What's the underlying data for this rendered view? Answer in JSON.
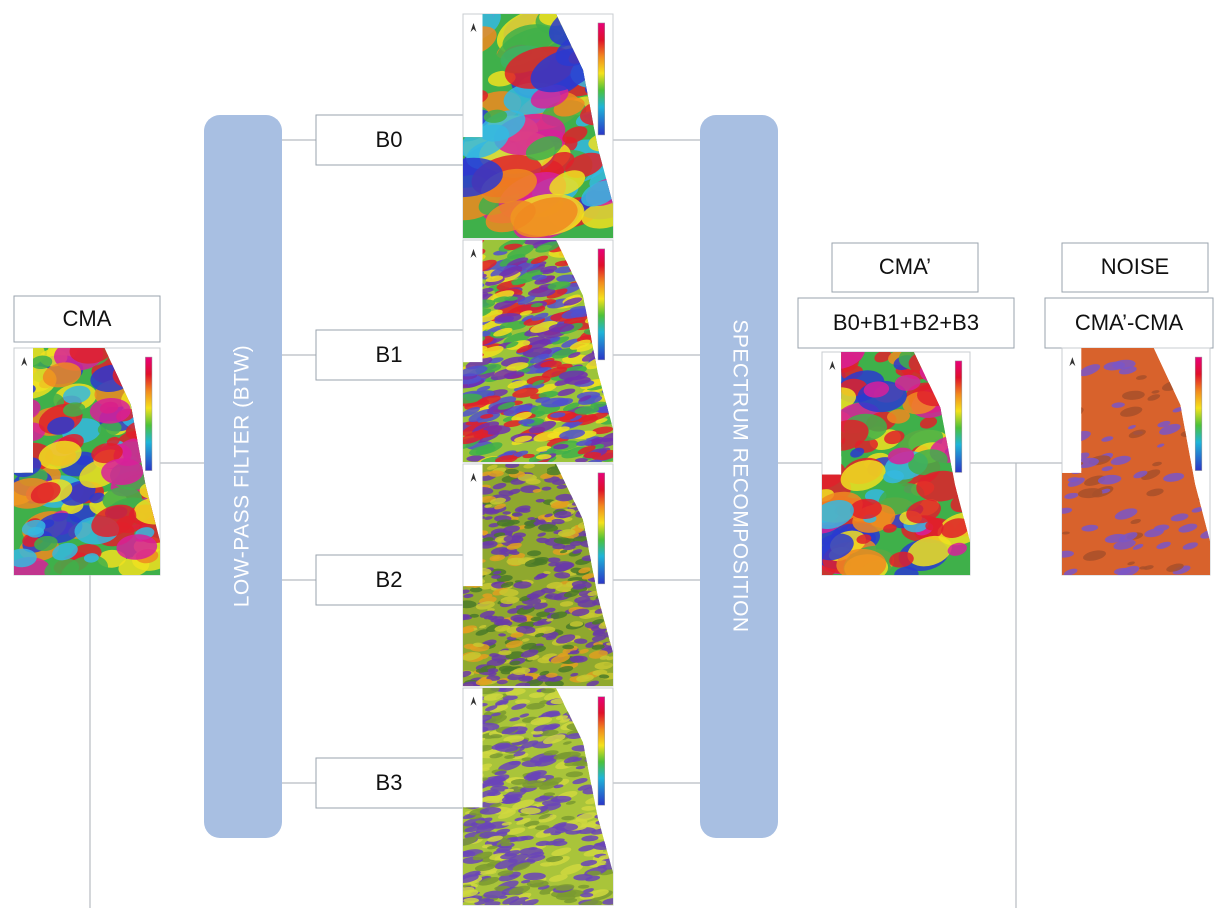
{
  "input": {
    "label": "CMA"
  },
  "filter": {
    "label": "LOW-PASS FILTER (BTW)"
  },
  "bands": [
    {
      "label": "B0"
    },
    {
      "label": "B1"
    },
    {
      "label": "B2"
    },
    {
      "label": "B3"
    }
  ],
  "recomposition": {
    "label": "SPECTRUM RECOMPOSITION"
  },
  "output": {
    "title": "CMA’",
    "formula": "B0+B1+B2+B3"
  },
  "noise": {
    "title": "NOISE",
    "formula": "CMA’-CMA"
  }
}
